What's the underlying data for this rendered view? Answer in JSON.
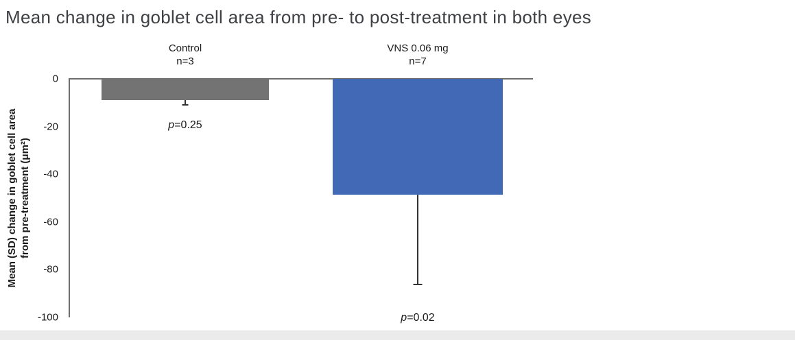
{
  "chart_data": {
    "type": "bar",
    "title": "Mean change in goblet cell area from pre- to post-treatment in both eyes",
    "ylabel": "Mean (SD) change in goblet cell area from pre-treatment (μm²)",
    "ylabel_lines": {
      "line1": "Mean (SD) change in goblet cell area",
      "line2": "from pre-treatment (μm²)"
    },
    "ylim": [
      0,
      -100
    ],
    "yticks": [
      "0",
      "-20",
      "-40",
      "-60",
      "-80",
      "-100"
    ],
    "grid": false,
    "legend": "none",
    "categories": [
      "Control",
      "VNS 0.06 mg"
    ],
    "groups": [
      {
        "label": "Control",
        "n_label": "n=3",
        "mean": -9,
        "error_to": -11,
        "p_prefix": "p",
        "p_rest": "=0.25",
        "color": "#737373"
      },
      {
        "label": "VNS 0.06 mg",
        "n_label": "n=7",
        "mean": -48.5,
        "error_to": -86,
        "p_prefix": "p",
        "p_rest": "=0.02",
        "color": "#4269B5"
      }
    ]
  }
}
